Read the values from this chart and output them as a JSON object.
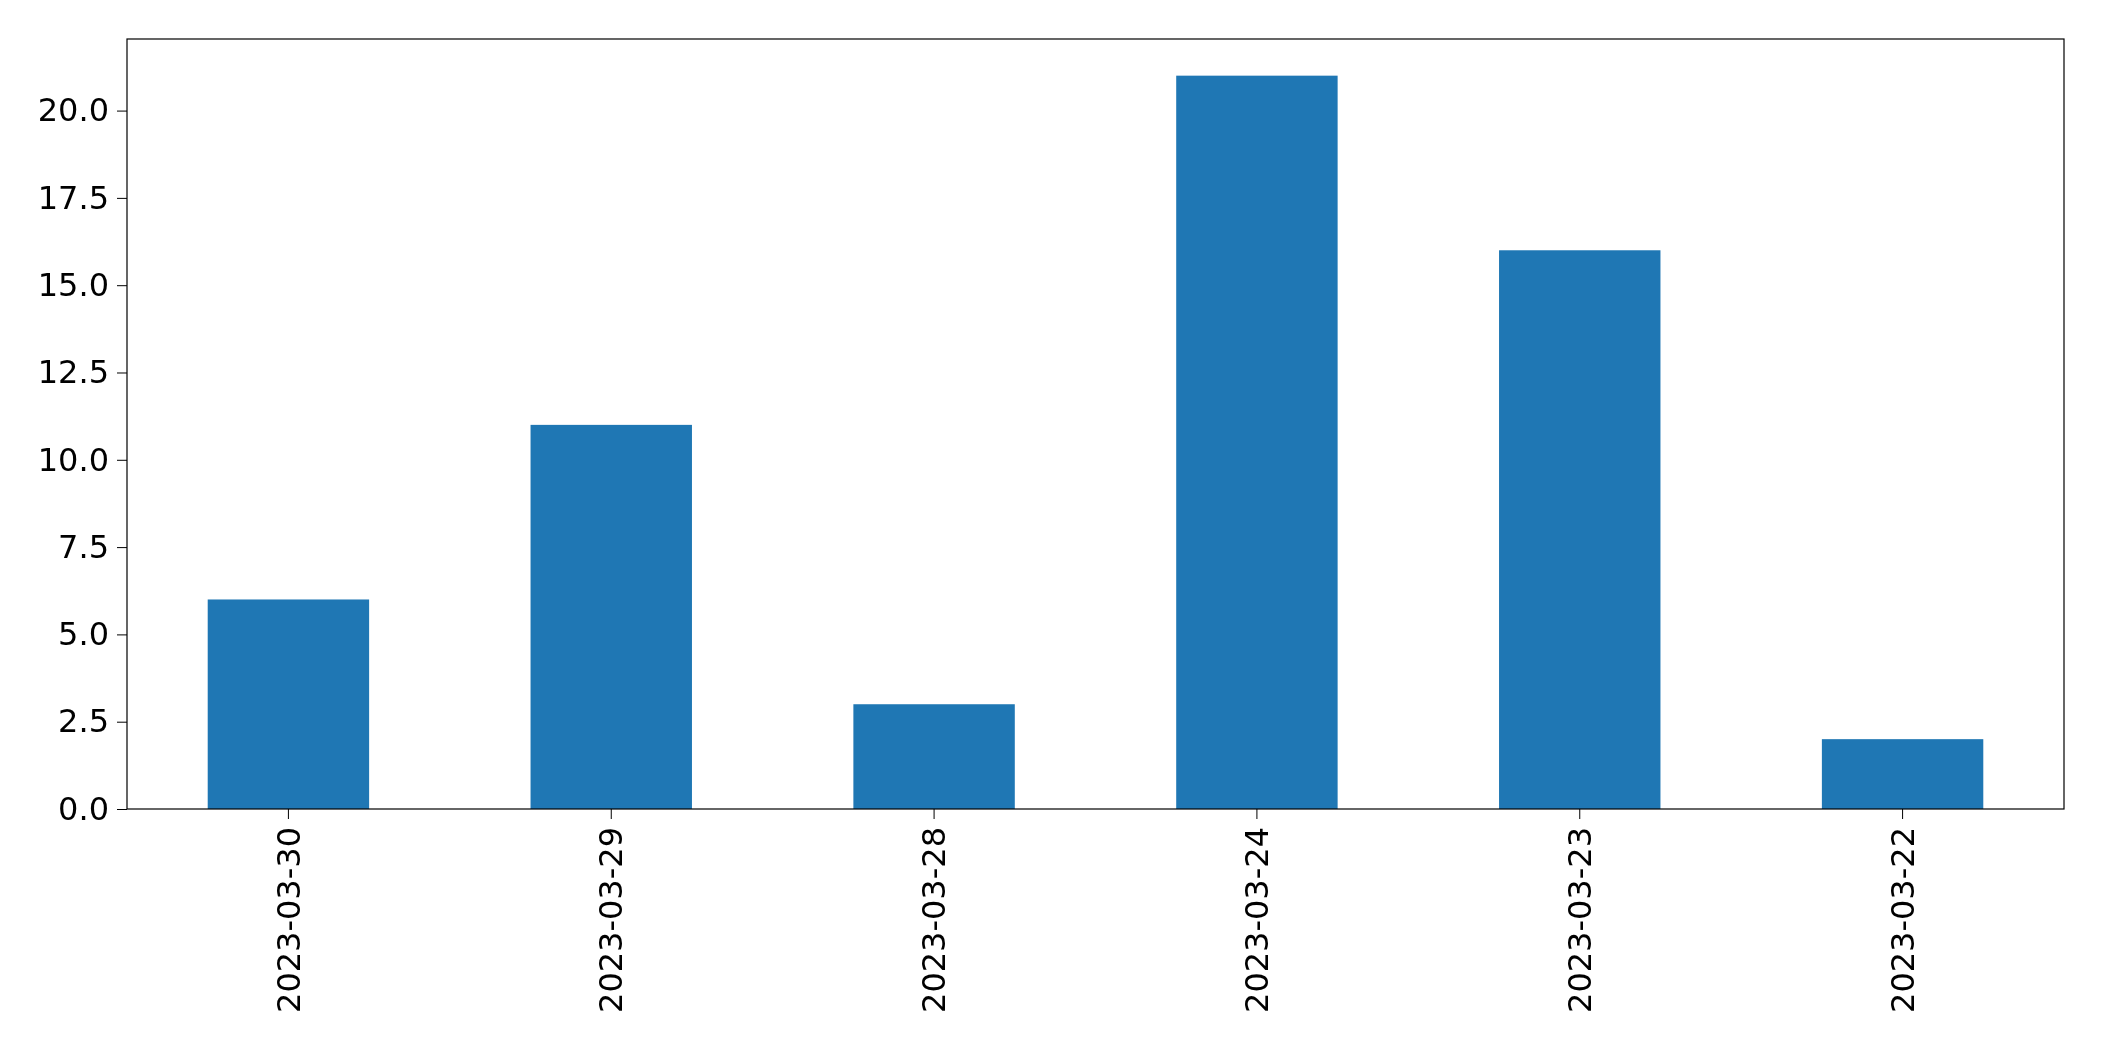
{
  "chart_data": {
    "type": "bar",
    "categories": [
      "2023-03-30",
      "2023-03-29",
      "2023-03-28",
      "2023-03-24",
      "2023-03-23",
      "2023-03-22"
    ],
    "values": [
      6,
      11,
      3,
      21,
      16,
      2
    ],
    "color": "#1f77b4",
    "ylim": [
      0,
      22.05
    ],
    "yticks": [
      {
        "value": 0,
        "label": "0.0"
      },
      {
        "value": 2.5,
        "label": "2.5"
      },
      {
        "value": 5,
        "label": "5.0"
      },
      {
        "value": 7.5,
        "label": "7.5"
      },
      {
        "value": 10,
        "label": "10.0"
      },
      {
        "value": 12.5,
        "label": "12.5"
      },
      {
        "value": 15,
        "label": "15.0"
      },
      {
        "value": 17.5,
        "label": "17.5"
      },
      {
        "value": 20,
        "label": "20.0"
      }
    ],
    "grid": false
  }
}
